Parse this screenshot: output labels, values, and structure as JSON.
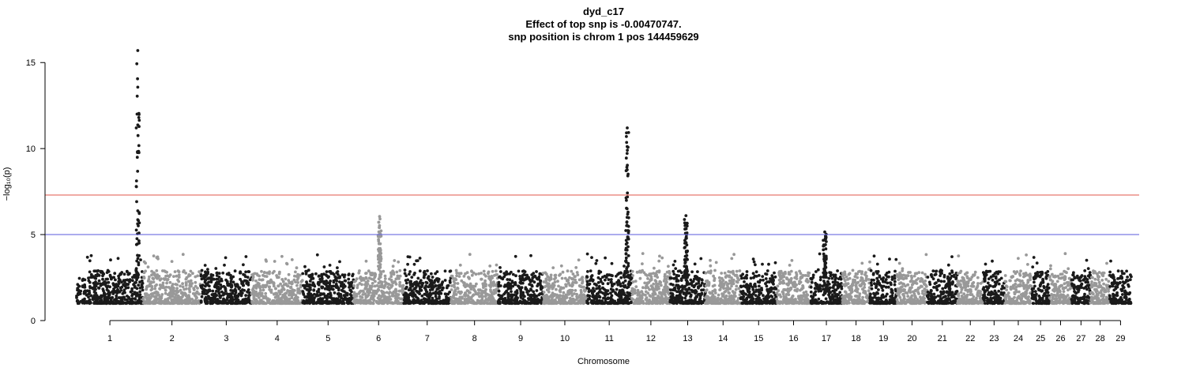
{
  "chart_data": {
    "type": "scatter",
    "title_lines": [
      "dyd_c17",
      "Effect of top snp is -0.00470747.",
      "snp position is chrom 1 pos 144459629"
    ],
    "xlabel": "Chromosome",
    "ylabel": "−log₁₀(p)",
    "ylim": [
      0,
      15.7
    ],
    "y_ticks": [
      "0",
      "5",
      "10",
      "15"
    ],
    "chromosomes": [
      "1",
      "2",
      "3",
      "4",
      "5",
      "6",
      "7",
      "8",
      "9",
      "10",
      "11",
      "12",
      "13",
      "14",
      "15",
      "16",
      "17",
      "18",
      "19",
      "20",
      "21",
      "22",
      "23",
      "24",
      "25",
      "26",
      "27",
      "28",
      "29"
    ],
    "chromosome_lengths_mb": [
      158,
      137,
      121,
      121,
      121,
      119,
      112,
      113,
      106,
      104,
      107,
      91,
      84,
      84,
      85,
      81,
      75,
      66,
      64,
      72,
      72,
      61,
      52,
      63,
      43,
      52,
      45,
      46,
      51
    ],
    "point_colors": [
      "#1a1a1a",
      "#999999"
    ],
    "thresholds": [
      {
        "value": 7.3,
        "color": "#e8776e"
      },
      {
        "value": 5.0,
        "color": "#6b6be0"
      }
    ],
    "peaks": [
      {
        "chrom": 1,
        "pos_frac": 0.92,
        "max": 15.7
      },
      {
        "chrom": 6,
        "pos_frac": 0.52,
        "max": 6.05
      },
      {
        "chrom": 11,
        "pos_frac": 0.9,
        "max": 11.2
      },
      {
        "chrom": 13,
        "pos_frac": 0.45,
        "max": 6.1
      },
      {
        "chrom": 17,
        "pos_frac": 0.45,
        "max": 5.15
      }
    ]
  }
}
